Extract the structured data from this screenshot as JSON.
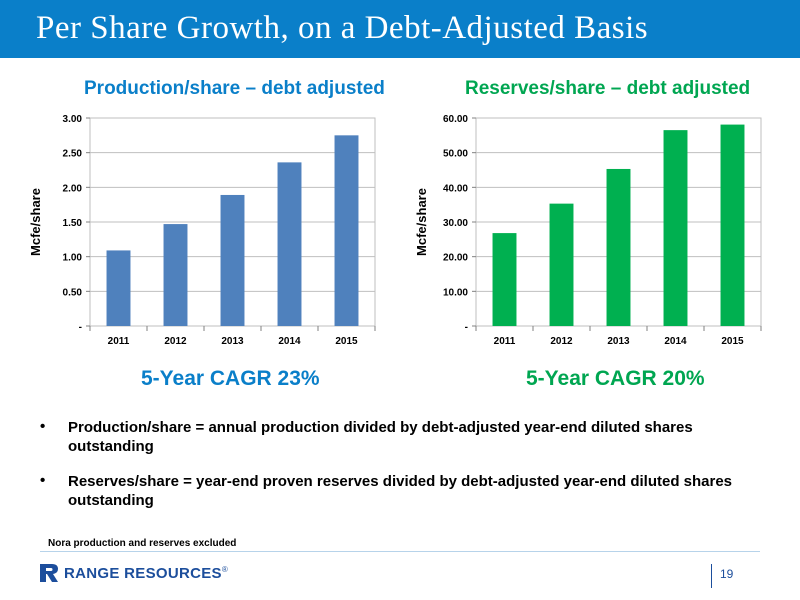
{
  "slide": {
    "title": "Per Share Growth, on a Debt-Adjusted Basis",
    "page_number": "19",
    "footnote": "Nora production and reserves excluded",
    "logo_text": "RANGE RESOURCES",
    "logo_mark": "®",
    "bullet_marker": "•",
    "bullets": [
      "Production/share = annual production divided by debt-adjusted year-end diluted shares outstanding",
      "Reserves/share = year-end proven reserves divided by debt-adjusted year-end diluted shares outstanding"
    ],
    "colors": {
      "title_bar": "#0a7fc9",
      "chart1": "#4f81bd",
      "chart2": "#00b050",
      "chart1_title": "#0a7fc9",
      "chart2_title": "#00a651",
      "brand": "#1c4e9c"
    }
  },
  "chart_data": [
    {
      "type": "bar",
      "title": "Production/share – debt adjusted",
      "ylabel": "Mcfe/share",
      "xlabel": "",
      "categories": [
        "2011",
        "2012",
        "2013",
        "2014",
        "2015"
      ],
      "values": [
        1.09,
        1.47,
        1.89,
        2.36,
        2.75
      ],
      "ylim": [
        0,
        3.0
      ],
      "yticks": [
        0,
        0.5,
        1.0,
        1.5,
        2.0,
        2.5,
        3.0
      ],
      "ytick_labels": [
        "-",
        "0.50",
        "1.00",
        "1.50",
        "2.00",
        "2.50",
        "3.00"
      ],
      "grid": true,
      "color": "#4f81bd",
      "annotation": "5-Year CAGR 23%"
    },
    {
      "type": "bar",
      "title": "Reserves/share – debt adjusted",
      "ylabel": "Mcfe/share",
      "xlabel": "",
      "categories": [
        "2011",
        "2012",
        "2013",
        "2014",
        "2015"
      ],
      "values": [
        26.8,
        35.3,
        45.3,
        56.5,
        58.1
      ],
      "ylim": [
        0,
        60
      ],
      "yticks": [
        0,
        10,
        20,
        30,
        40,
        50,
        60
      ],
      "ytick_labels": [
        "-",
        "10.00",
        "20.00",
        "30.00",
        "40.00",
        "50.00",
        "60.00"
      ],
      "grid": true,
      "color": "#00b050",
      "annotation": "5-Year CAGR 20%"
    }
  ]
}
